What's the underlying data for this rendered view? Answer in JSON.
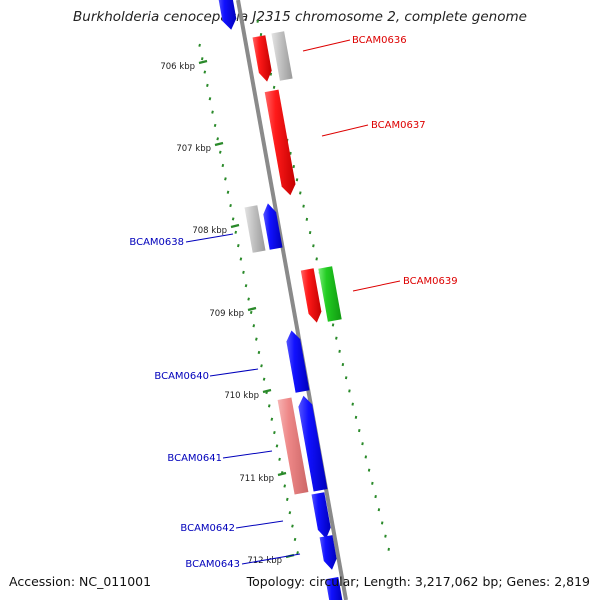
{
  "title": "Burkholderia cenocepacia J2315 chromosome 2, complete genome",
  "footer": {
    "accession": "Accession: NC_011001",
    "topology": "Topology: circular; Length: 3,217,062 bp; Genes: 2,819"
  },
  "colors": {
    "backbone": "#8a8a8a",
    "tick": "#2a8a2a",
    "red": "#ee1111",
    "blue": "#1111ee",
    "grey": "#bbbbbb",
    "green": "#22cc22",
    "pink": "#ee8888",
    "label_red": "#dd0000",
    "label_blue": "#0000bb"
  },
  "ticks": [
    "706 kbp",
    "707 kbp",
    "708 kbp",
    "709 kbp",
    "710 kbp",
    "711 kbp",
    "712 kbp"
  ],
  "genes": [
    {
      "name": "BCAM0636",
      "color": "red"
    },
    {
      "name": "BCAM0637",
      "color": "red"
    },
    {
      "name": "BCAM0638",
      "color": "blue"
    },
    {
      "name": "BCAM0639",
      "color": "red"
    },
    {
      "name": "BCAM0640",
      "color": "blue"
    },
    {
      "name": "BCAM0641",
      "color": "blue"
    },
    {
      "name": "BCAM0642",
      "color": "blue"
    },
    {
      "name": "BCAM0643",
      "color": "blue"
    }
  ]
}
